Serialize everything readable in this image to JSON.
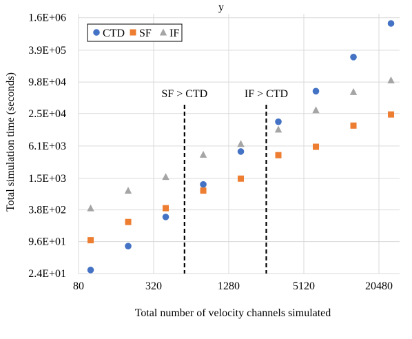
{
  "chart_data": {
    "type": "scatter",
    "title": "y",
    "xlabel": "Total number of velocity channels simulated",
    "ylabel": "Total simulation time (seconds)",
    "x_scale": "log2",
    "y_scale": "log",
    "x_ticks": [
      80,
      320,
      1280,
      5120,
      20480
    ],
    "x_tick_labels": [
      "80",
      "320",
      "1280",
      "5120",
      "20480"
    ],
    "y_ticks": [
      24,
      96,
      380,
      1500,
      6100,
      25000,
      98000,
      390000,
      1600000
    ],
    "y_tick_labels": [
      "2.4E+01",
      "9.6E+01",
      "3.8E+02",
      "1.5E+03",
      "6.1E+03",
      "2.5E+04",
      "9.8E+04",
      "3.9E+05",
      "1.6E+06"
    ],
    "xlim": [
      80,
      30000
    ],
    "ylim": [
      24,
      1900000
    ],
    "grid": true,
    "legend_position": "top-left",
    "x": [
      100,
      200,
      400,
      800,
      1600,
      3200,
      6400,
      12800,
      25600
    ],
    "series": [
      {
        "name": "CTD",
        "color": "#4472C4",
        "marker": "circle",
        "values": [
          28,
          79,
          280,
          1150,
          4800,
          17500,
          66000,
          290000,
          1250000
        ]
      },
      {
        "name": "SF",
        "color": "#ED7D31",
        "marker": "square",
        "values": [
          102,
          225,
          410,
          880,
          1480,
          4100,
          5900,
          14800,
          24000
        ]
      },
      {
        "name": "IF",
        "color": "#A5A5A5",
        "marker": "triangle",
        "values": [
          410,
          880,
          1600,
          4200,
          6700,
          12500,
          29000,
          64000,
          106000
        ]
      }
    ],
    "annotations": [
      {
        "text": "SF > CTD",
        "x": 566
      },
      {
        "text": "IF > CTD",
        "x": 2560
      }
    ]
  }
}
